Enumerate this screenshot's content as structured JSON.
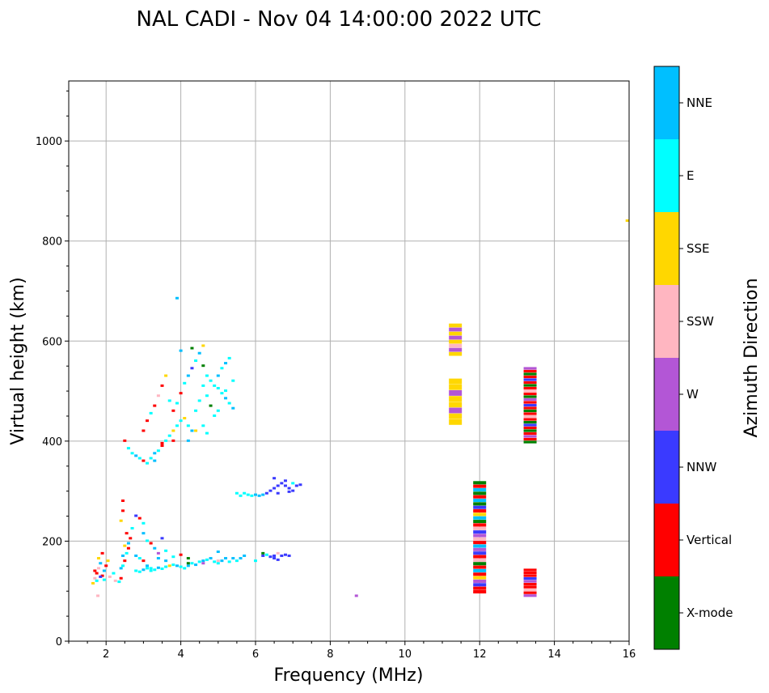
{
  "chart_data": {
    "type": "scatter",
    "title": "NAL CADI - Nov 04 14:00:00 2022 UTC",
    "xlabel": "Frequency (MHz)",
    "ylabel": "Virtual height (km)",
    "xlim": [
      1,
      16
    ],
    "ylim": [
      0,
      1120
    ],
    "xticks": [
      2,
      4,
      6,
      8,
      10,
      12,
      14,
      16
    ],
    "yticks": [
      0,
      200,
      400,
      600,
      800,
      1000
    ],
    "grid": true,
    "colorbar": {
      "label": "Azimuth Direction",
      "categories": [
        {
          "name": "X-mode",
          "color": "#008000"
        },
        {
          "name": "Vertical",
          "color": "#ff0000"
        },
        {
          "name": "NNW",
          "color": "#3a3aff"
        },
        {
          "name": "W",
          "color": "#b356d6"
        },
        {
          "name": "SSW",
          "color": "#ffb6c1"
        },
        {
          "name": "SSE",
          "color": "#ffd700"
        },
        {
          "name": "E",
          "color": "#00ffff"
        },
        {
          "name": "NNE",
          "color": "#00bfff"
        }
      ]
    },
    "points": [
      [
        1.65,
        115,
        "SSE"
      ],
      [
        1.7,
        125,
        "SSW"
      ],
      [
        1.75,
        135,
        "Vertical"
      ],
      [
        1.8,
        145,
        "SSW"
      ],
      [
        1.85,
        155,
        "NNE"
      ],
      [
        1.7,
        140,
        "Vertical"
      ],
      [
        1.75,
        120,
        "E"
      ],
      [
        1.9,
        130,
        "Vertical"
      ],
      [
        1.8,
        165,
        "SSE"
      ],
      [
        1.9,
        175,
        "Vertical"
      ],
      [
        1.95,
        140,
        "NNE"
      ],
      [
        2.0,
        150,
        "Vertical"
      ],
      [
        2.05,
        160,
        "SSE"
      ],
      [
        1.85,
        128,
        "NNW"
      ],
      [
        1.95,
        122,
        "E"
      ],
      [
        1.78,
        90,
        "SSW"
      ],
      [
        2.1,
        128,
        "SSW"
      ],
      [
        2.2,
        135,
        "E"
      ],
      [
        2.25,
        120,
        "SSW"
      ],
      [
        2.35,
        118,
        "E"
      ],
      [
        2.4,
        125,
        "Vertical"
      ],
      [
        2.4,
        145,
        "NNE"
      ],
      [
        2.45,
        150,
        "E"
      ],
      [
        2.5,
        160,
        "Vertical"
      ],
      [
        2.45,
        170,
        "NNE"
      ],
      [
        2.55,
        175,
        "E"
      ],
      [
        2.6,
        185,
        "Vertical"
      ],
      [
        2.5,
        190,
        "SSE"
      ],
      [
        2.6,
        195,
        "NNE"
      ],
      [
        2.65,
        205,
        "Vertical"
      ],
      [
        2.55,
        215,
        "Vertical"
      ],
      [
        2.7,
        225,
        "E"
      ],
      [
        2.4,
        240,
        "SSE"
      ],
      [
        2.45,
        260,
        "Vertical"
      ],
      [
        2.45,
        280,
        "Vertical"
      ],
      [
        2.8,
        250,
        "NNW"
      ],
      [
        2.9,
        245,
        "Vertical"
      ],
      [
        3.0,
        235,
        "E"
      ],
      [
        3.0,
        215,
        "NNE"
      ],
      [
        3.1,
        200,
        "E"
      ],
      [
        3.2,
        195,
        "Vertical"
      ],
      [
        3.3,
        185,
        "NNE"
      ],
      [
        3.4,
        175,
        "W"
      ],
      [
        3.5,
        205,
        "NNW"
      ],
      [
        3.6,
        180,
        "E"
      ],
      [
        2.8,
        170,
        "NNE"
      ],
      [
        2.9,
        165,
        "E"
      ],
      [
        3.0,
        160,
        "Vertical"
      ],
      [
        3.1,
        150,
        "NNE"
      ],
      [
        3.2,
        145,
        "E"
      ],
      [
        2.8,
        140,
        "E"
      ],
      [
        2.9,
        138,
        "E"
      ],
      [
        3.0,
        142,
        "NNE"
      ],
      [
        3.1,
        145,
        "E"
      ],
      [
        3.2,
        140,
        "E"
      ],
      [
        3.3,
        142,
        "E"
      ],
      [
        3.4,
        146,
        "NNE"
      ],
      [
        3.5,
        144,
        "E"
      ],
      [
        3.6,
        148,
        "E"
      ],
      [
        3.7,
        150,
        "SSE"
      ],
      [
        3.8,
        152,
        "E"
      ],
      [
        3.9,
        150,
        "NNE"
      ],
      [
        4.0,
        148,
        "E"
      ],
      [
        4.1,
        145,
        "E"
      ],
      [
        4.2,
        150,
        "NNE"
      ],
      [
        4.3,
        155,
        "E"
      ],
      [
        4.4,
        152,
        "NNE"
      ],
      [
        4.5,
        158,
        "E"
      ],
      [
        4.6,
        160,
        "NNE"
      ],
      [
        4.7,
        162,
        "E"
      ],
      [
        4.8,
        165,
        "NNE"
      ],
      [
        4.9,
        158,
        "E"
      ],
      [
        5.0,
        155,
        "E"
      ],
      [
        5.1,
        160,
        "NNE"
      ],
      [
        5.2,
        165,
        "NNE"
      ],
      [
        5.3,
        158,
        "E"
      ],
      [
        5.4,
        165,
        "NNE"
      ],
      [
        5.5,
        160,
        "E"
      ],
      [
        5.6,
        165,
        "NNE"
      ],
      [
        5.7,
        170,
        "NNE"
      ],
      [
        3.6,
        160,
        "NNE"
      ],
      [
        3.8,
        168,
        "E"
      ],
      [
        4.0,
        172,
        "Vertical"
      ],
      [
        4.2,
        155,
        "X-mode"
      ],
      [
        4.6,
        155,
        "W"
      ],
      [
        5.0,
        160,
        "SSW"
      ],
      [
        4.2,
        165,
        "X-mode"
      ],
      [
        3.4,
        165,
        "NNE"
      ],
      [
        5.0,
        178,
        "NNE"
      ],
      [
        6.0,
        160,
        "E"
      ],
      [
        6.2,
        170,
        "NNW"
      ],
      [
        6.3,
        172,
        "E"
      ],
      [
        6.4,
        168,
        "NNW"
      ],
      [
        6.5,
        170,
        "NNW"
      ],
      [
        6.6,
        175,
        "SSW"
      ],
      [
        6.7,
        170,
        "NNW"
      ],
      [
        6.8,
        172,
        "NNW"
      ],
      [
        6.9,
        170,
        "NNW"
      ],
      [
        6.2,
        175,
        "X-mode"
      ],
      [
        6.6,
        162,
        "NNW"
      ],
      [
        6.5,
        165,
        "NNW"
      ],
      [
        5.5,
        295,
        "E"
      ],
      [
        5.6,
        290,
        "E"
      ],
      [
        5.7,
        295,
        "E"
      ],
      [
        5.8,
        292,
        "E"
      ],
      [
        5.9,
        290,
        "E"
      ],
      [
        6.0,
        292,
        "NNE"
      ],
      [
        6.1,
        290,
        "NNE"
      ],
      [
        6.2,
        292,
        "NNE"
      ],
      [
        6.3,
        295,
        "NNW"
      ],
      [
        6.4,
        300,
        "NNW"
      ],
      [
        6.5,
        305,
        "NNW"
      ],
      [
        6.6,
        310,
        "NNW"
      ],
      [
        6.7,
        315,
        "NNW"
      ],
      [
        6.8,
        310,
        "NNW"
      ],
      [
        6.9,
        305,
        "NNW"
      ],
      [
        7.0,
        300,
        "NNW"
      ],
      [
        7.1,
        310,
        "NNW"
      ],
      [
        7.2,
        312,
        "NNW"
      ],
      [
        6.5,
        325,
        "NNW"
      ],
      [
        6.8,
        320,
        "NNW"
      ],
      [
        7.0,
        315,
        "E"
      ],
      [
        6.6,
        295,
        "NNW"
      ],
      [
        6.9,
        298,
        "NNW"
      ],
      [
        2.5,
        400,
        "Vertical"
      ],
      [
        2.6,
        385,
        "E"
      ],
      [
        2.7,
        375,
        "E"
      ],
      [
        2.8,
        370,
        "NNE"
      ],
      [
        2.9,
        365,
        "E"
      ],
      [
        3.0,
        360,
        "Vertical"
      ],
      [
        3.1,
        355,
        "E"
      ],
      [
        3.2,
        365,
        "E"
      ],
      [
        3.3,
        375,
        "NNE"
      ],
      [
        3.4,
        380,
        "E"
      ],
      [
        3.5,
        390,
        "Vertical"
      ],
      [
        3.6,
        400,
        "E"
      ],
      [
        3.7,
        410,
        "E"
      ],
      [
        3.8,
        420,
        "SSE"
      ],
      [
        3.9,
        430,
        "E"
      ],
      [
        4.0,
        440,
        "E"
      ],
      [
        4.1,
        445,
        "SSE"
      ],
      [
        4.2,
        430,
        "E"
      ],
      [
        4.3,
        420,
        "NNE"
      ],
      [
        3.0,
        420,
        "Vertical"
      ],
      [
        3.1,
        440,
        "Vertical"
      ],
      [
        3.2,
        455,
        "E"
      ],
      [
        3.3,
        470,
        "Vertical"
      ],
      [
        3.4,
        490,
        "SSW"
      ],
      [
        3.5,
        510,
        "Vertical"
      ],
      [
        3.6,
        530,
        "SSE"
      ],
      [
        3.7,
        480,
        "E"
      ],
      [
        3.8,
        460,
        "Vertical"
      ],
      [
        3.9,
        475,
        "E"
      ],
      [
        4.0,
        495,
        "Vertical"
      ],
      [
        4.1,
        515,
        "E"
      ],
      [
        4.2,
        530,
        "NNE"
      ],
      [
        4.3,
        545,
        "NNW"
      ],
      [
        4.4,
        560,
        "E"
      ],
      [
        4.5,
        575,
        "NNE"
      ],
      [
        4.6,
        590,
        "SSE"
      ],
      [
        4.3,
        585,
        "X-mode"
      ],
      [
        4.0,
        580,
        "NNE"
      ],
      [
        4.2,
        400,
        "NNE"
      ],
      [
        4.4,
        420,
        "SSE"
      ],
      [
        3.8,
        400,
        "Vertical"
      ],
      [
        3.5,
        395,
        "Vertical"
      ],
      [
        3.3,
        360,
        "NNE"
      ],
      [
        3.9,
        685,
        "NNE"
      ],
      [
        4.6,
        550,
        "X-mode"
      ],
      [
        4.7,
        530,
        "E"
      ],
      [
        4.8,
        520,
        "E"
      ],
      [
        4.9,
        510,
        "E"
      ],
      [
        5.0,
        505,
        "E"
      ],
      [
        5.1,
        495,
        "E"
      ],
      [
        5.2,
        485,
        "NNE"
      ],
      [
        5.3,
        475,
        "E"
      ],
      [
        5.4,
        465,
        "NNE"
      ],
      [
        5.0,
        530,
        "NNE"
      ],
      [
        5.1,
        545,
        "E"
      ],
      [
        5.2,
        555,
        "NNE"
      ],
      [
        5.3,
        565,
        "E"
      ],
      [
        4.6,
        510,
        "E"
      ],
      [
        4.7,
        490,
        "E"
      ],
      [
        4.8,
        470,
        "X-mode"
      ],
      [
        4.9,
        450,
        "E"
      ],
      [
        4.6,
        430,
        "E"
      ],
      [
        4.7,
        415,
        "E"
      ],
      [
        5.0,
        460,
        "E"
      ],
      [
        5.2,
        500,
        "E"
      ],
      [
        5.4,
        520,
        "E"
      ],
      [
        4.5,
        480,
        "E"
      ],
      [
        4.4,
        460,
        "E"
      ],
      [
        8.7,
        90,
        "W"
      ],
      [
        15.95,
        840,
        "SSE"
      ]
    ],
    "columns": [
      {
        "x": 11.35,
        "range": [
          432,
          525
        ],
        "colors": [
          "SSE",
          "SSE",
          "W",
          "SSE",
          "SSE",
          "W",
          "SSE",
          "SSE"
        ]
      },
      {
        "x": 11.35,
        "range": [
          570,
          635
        ],
        "colors": [
          "SSE",
          "W",
          "SSE",
          "W",
          "SSE",
          "SSW",
          "W",
          "SSE"
        ]
      },
      {
        "x": 12.0,
        "range": [
          95,
          320
        ],
        "colors": [
          "X-mode",
          "Vertical",
          "NNE",
          "X-mode",
          "Vertical",
          "NNE",
          "X-mode",
          "NNW",
          "Vertical",
          "SSE",
          "NNE",
          "X-mode",
          "Vertical",
          "SSW",
          "NNW",
          "W",
          "SSW",
          "Vertical",
          "NNE",
          "W",
          "NNW",
          "Vertical",
          "SSW",
          "X-mode",
          "Vertical",
          "NNE",
          "Vertical",
          "SSE",
          "W",
          "NNW",
          "Vertical",
          "Vertical"
        ]
      },
      {
        "x": 13.35,
        "range": [
          395,
          548
        ],
        "colors": [
          "W",
          "Vertical",
          "X-mode",
          "Vertical",
          "NNW",
          "Vertical",
          "X-mode",
          "Vertical",
          "SSW",
          "Vertical",
          "X-mode",
          "W",
          "Vertical",
          "NNW",
          "Vertical",
          "X-mode",
          "Vertical",
          "SSW",
          "Vertical",
          "X-mode",
          "NNW",
          "Vertical",
          "X-mode",
          "Vertical",
          "W",
          "Vertical",
          "X-mode"
        ]
      },
      {
        "x": 13.35,
        "range": [
          88,
          145
        ],
        "colors": [
          "Vertical",
          "Vertical",
          "Vertical",
          "NNW",
          "W",
          "Vertical",
          "Vertical",
          "SSW",
          "Vertical",
          "W"
        ]
      }
    ]
  }
}
